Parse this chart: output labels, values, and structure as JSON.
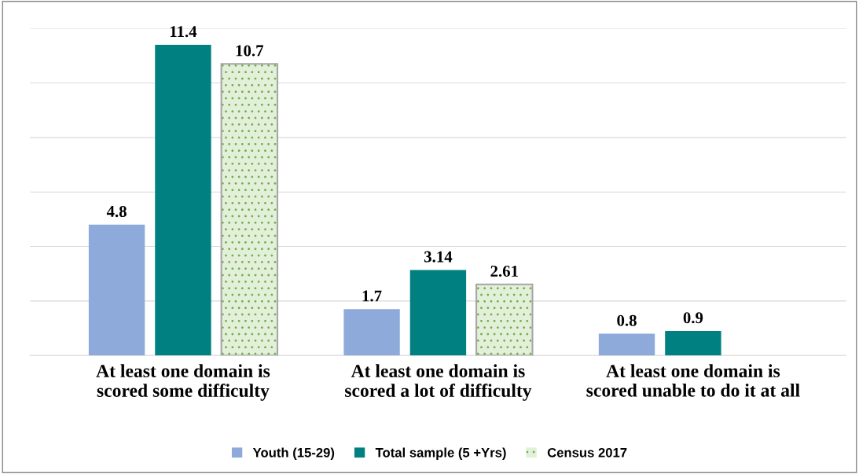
{
  "chart_data": {
    "type": "bar",
    "categories": [
      "At least one domain is\nscored some difficulty",
      "At least one domain is\nscored a lot of difficulty",
      "At least one domain is\nscored unable to do it at all"
    ],
    "series": [
      {
        "name": "Youth (15-29)",
        "color": "#8eaadb",
        "values": [
          4.8,
          1.7,
          0.8
        ]
      },
      {
        "name": "Total sample (5 +Yrs)",
        "color": "#008080",
        "values": [
          11.4,
          3.14,
          0.9
        ]
      },
      {
        "name": "Census 2017",
        "color": "#e2efd9",
        "values": [
          10.7,
          2.61,
          null
        ]
      }
    ],
    "ylim": [
      0,
      12
    ],
    "yticks": [
      {
        "value": 0,
        "label": null
      },
      {
        "value": 2,
        "label": null
      },
      {
        "value": 4,
        "label": null
      },
      {
        "value": 6,
        "label": null
      },
      {
        "value": 8,
        "label": null
      },
      {
        "value": 10,
        "label": null
      },
      {
        "value": 12,
        "label": null
      }
    ],
    "grid": "y",
    "legend": "bottom",
    "data_labels": true,
    "tick_labels": "x"
  }
}
